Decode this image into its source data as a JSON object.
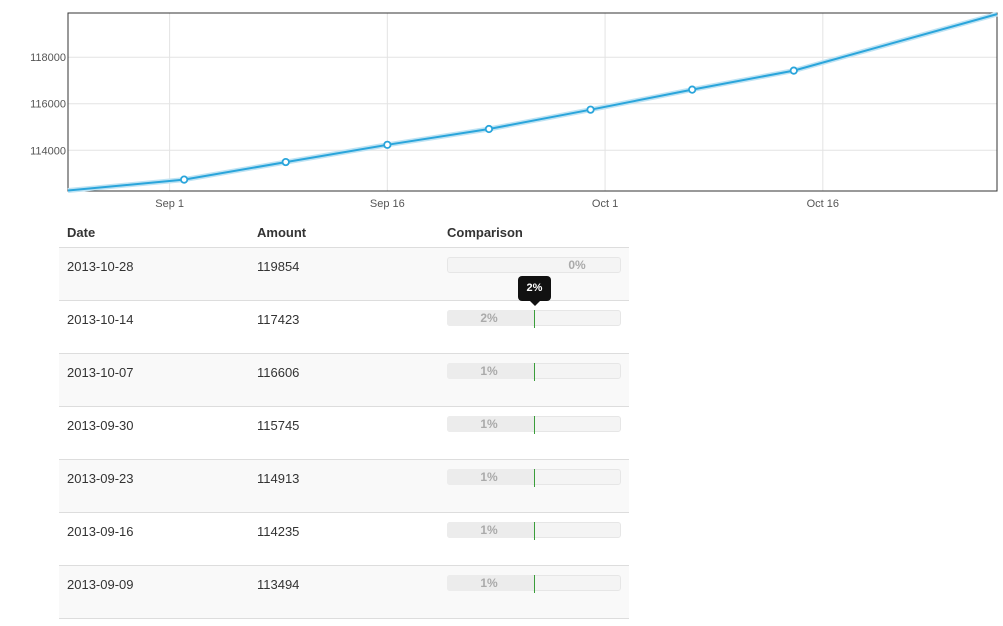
{
  "chart_data": {
    "type": "line",
    "title": "",
    "xlabel": "",
    "ylabel": "",
    "x_ticks": [
      "Sep 1",
      "Sep 16",
      "Oct 1",
      "Oct 16"
    ],
    "x_tick_dates": [
      "2013-09-01",
      "2013-09-16",
      "2013-10-01",
      "2013-10-16"
    ],
    "y_ticks": [
      114000,
      116000,
      118000
    ],
    "xlim": [
      "2013-08-25",
      "2013-10-28"
    ],
    "ylim": [
      112250,
      119900
    ],
    "grid": true,
    "line_color": "#2aa5db",
    "series": [
      {
        "x": [
          "2013-08-25",
          "2013-09-02",
          "2013-09-09",
          "2013-09-16",
          "2013-09-23",
          "2013-09-30",
          "2013-10-07",
          "2013-10-14",
          "2013-10-28"
        ],
        "values": [
          112270,
          112740,
          113494,
          114235,
          114913,
          115745,
          116606,
          117423,
          119854
        ]
      }
    ]
  },
  "table": {
    "headers": {
      "date": "Date",
      "amount": "Amount",
      "comparison": "Comparison"
    },
    "rows": [
      {
        "date": "2013-10-28",
        "amount": "119854",
        "pct": "0%",
        "comparison": 0
      },
      {
        "date": "2013-10-14",
        "amount": "117423",
        "pct": "2%",
        "comparison": 2
      },
      {
        "date": "2013-10-07",
        "amount": "116606",
        "pct": "1%",
        "comparison": 1
      },
      {
        "date": "2013-09-30",
        "amount": "115745",
        "pct": "1%",
        "comparison": 1
      },
      {
        "date": "2013-09-23",
        "amount": "114913",
        "pct": "1%",
        "comparison": 1
      },
      {
        "date": "2013-09-16",
        "amount": "114235",
        "pct": "1%",
        "comparison": 1
      },
      {
        "date": "2013-09-09",
        "amount": "113494",
        "pct": "1%",
        "comparison": 1
      }
    ]
  },
  "tooltip": {
    "text": "2%"
  }
}
